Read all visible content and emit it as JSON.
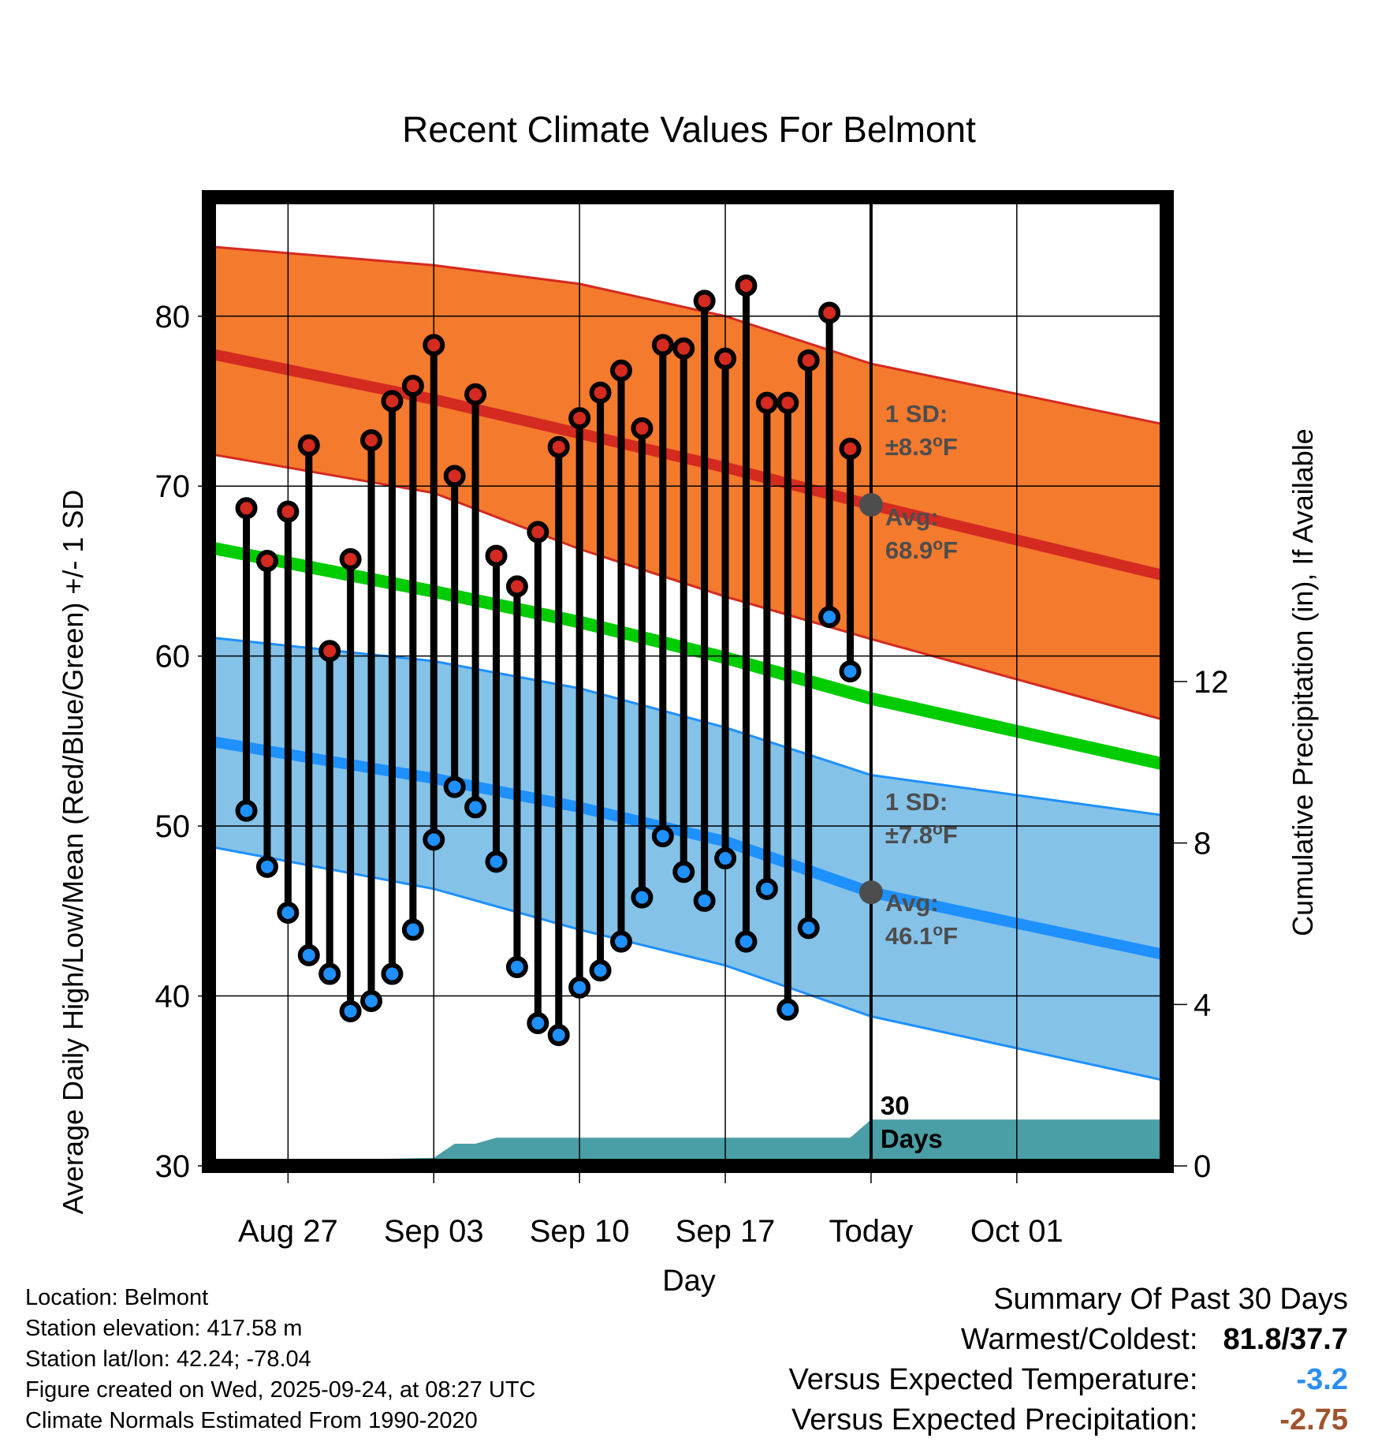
{
  "chart_data": {
    "type": "line",
    "title": "Recent Climate Values For Belmont",
    "xlabel": "Day",
    "ylabel": "Average Daily High/Low/Mean (Red/Blue/Green) +/- 1 SD",
    "y2label": "Cumulative Precipitation (in), If Available",
    "ylim": [
      30,
      87
    ],
    "y2lim": [
      0,
      24
    ],
    "yticks": [
      "30",
      "40",
      "50",
      "60",
      "70",
      "80"
    ],
    "y2ticks": [
      "0",
      "4",
      "8",
      "12"
    ],
    "xlim": [
      -3.8,
      42.2
    ],
    "xticks": [
      {
        "day": 0,
        "label": "Aug 27"
      },
      {
        "day": 7,
        "label": "Sep 03"
      },
      {
        "day": 14,
        "label": "Sep 10"
      },
      {
        "day": 21,
        "label": "Sep 17"
      },
      {
        "day": 28,
        "label": "Today"
      },
      {
        "day": 35,
        "label": "Oct 01"
      }
    ],
    "days": [
      -2,
      -1,
      0,
      1,
      2,
      3,
      4,
      5,
      6,
      7,
      8,
      9,
      10,
      11,
      12,
      13,
      14,
      15,
      16,
      17,
      18,
      19,
      20,
      21,
      22,
      23,
      24,
      25,
      26,
      27
    ],
    "highs": [
      68.7,
      65.6,
      68.5,
      72.4,
      60.3,
      65.7,
      72.7,
      75.0,
      75.9,
      78.3,
      70.6,
      75.4,
      65.9,
      64.1,
      67.3,
      72.3,
      74.0,
      75.5,
      76.8,
      73.4,
      78.3,
      78.1,
      80.9,
      77.5,
      81.8,
      74.9,
      74.9,
      77.4,
      80.2,
      72.2
    ],
    "lows": [
      50.9,
      47.6,
      44.9,
      42.4,
      41.3,
      39.1,
      39.7,
      41.3,
      43.9,
      49.2,
      52.3,
      51.1,
      47.9,
      41.7,
      38.4,
      37.7,
      40.5,
      41.5,
      43.2,
      45.8,
      49.4,
      47.3,
      45.6,
      48.1,
      43.2,
      46.3,
      39.2,
      44.0,
      62.3,
      59.1
    ],
    "normals": {
      "days": [
        -3.8,
        7,
        14,
        21,
        28,
        42.2
      ],
      "high": [
        77.8,
        75.1,
        73.1,
        71.1,
        68.9,
        64.7
      ],
      "high_upper": [
        84.1,
        83.0,
        81.9,
        80.0,
        77.2,
        73.6
      ],
      "high_lower": [
        71.9,
        69.6,
        66.3,
        63.5,
        61.0,
        56.2
      ],
      "mean": [
        66.4,
        63.8,
        62.0,
        59.9,
        57.5,
        53.6
      ],
      "low": [
        55.0,
        52.8,
        51.1,
        49.1,
        46.1,
        42.4
      ],
      "low_upper": [
        61.1,
        59.7,
        58.1,
        55.8,
        53.0,
        50.6
      ],
      "low_lower": [
        48.8,
        46.3,
        43.9,
        41.8,
        38.8,
        35.0
      ]
    },
    "precip_cumulative": {
      "days": [
        -3.8,
        1,
        2,
        7,
        8,
        9,
        10,
        27,
        28,
        42.2
      ],
      "values": [
        0,
        0,
        0.15,
        0.2,
        0.55,
        0.55,
        0.7,
        0.7,
        1.15,
        1.15
      ]
    },
    "normal_high_today": 68.9,
    "normal_low_today": 46.1,
    "annotations": {
      "high_sd_label": "1 SD:",
      "high_sd_value": "±8.3°F",
      "high_avg_label": "Avg:",
      "high_avg_value": "68.9°F",
      "low_sd_label": "1 SD:",
      "low_sd_value": "±7.8°F",
      "low_avg_label": "Avg:",
      "low_avg_value": "46.1°F",
      "days_count": "30",
      "days_label": "Days"
    },
    "colors": {
      "high": "#d42a20",
      "high_band": "#f47a2e",
      "low": "#1e90ff",
      "low_band": "#84c2e8",
      "mean": "#00cc00",
      "precip": "#4a9ea6"
    }
  },
  "info": {
    "location": "Location: Belmont",
    "elevation": "Station elevation: 417.58 m",
    "latlon": "Station lat/lon: 42.24; -78.04",
    "created": "Figure created on Wed, 2025-09-24, at 08:27 UTC",
    "normals": "Climate Normals Estimated From 1990-2020"
  },
  "summary": {
    "heading": "Summary Of Past 30 Days",
    "warmest_label": "Warmest/Coldest:",
    "warmest_value": "81.8/37.7",
    "temp_label": "Versus Expected Temperature:",
    "temp_value": "-3.2",
    "temp_color": "#2b8ff0",
    "precip_label": "Versus Expected Precipitation:",
    "precip_value": "-2.75",
    "precip_color": "#a0522d"
  }
}
